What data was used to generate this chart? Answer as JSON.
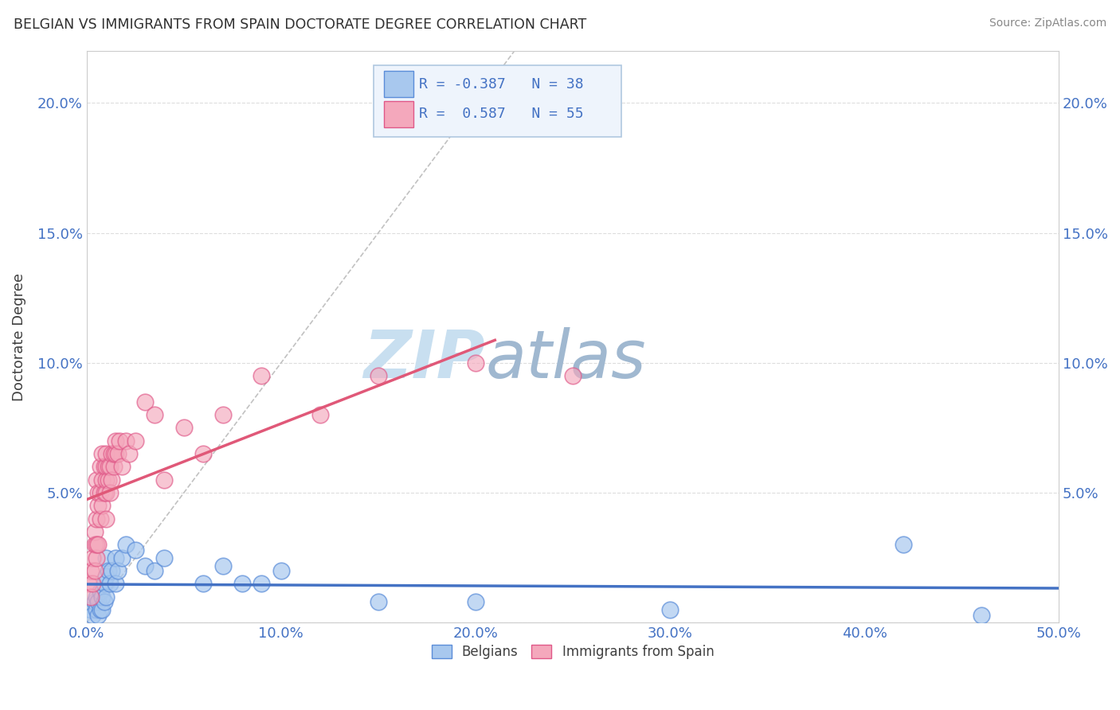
{
  "title": "BELGIAN VS IMMIGRANTS FROM SPAIN DOCTORATE DEGREE CORRELATION CHART",
  "source": "Source: ZipAtlas.com",
  "ylabel": "Doctorate Degree",
  "xlim": [
    0.0,
    0.5
  ],
  "ylim": [
    0.0,
    0.22
  ],
  "xticks": [
    0.0,
    0.1,
    0.2,
    0.3,
    0.4,
    0.5
  ],
  "xticklabels": [
    "0.0%",
    "10.0%",
    "20.0%",
    "30.0%",
    "40.0%",
    "50.0%"
  ],
  "yticks": [
    0.0,
    0.05,
    0.1,
    0.15,
    0.2
  ],
  "yticklabels": [
    "",
    "5.0%",
    "10.0%",
    "15.0%",
    "20.0%"
  ],
  "blue_R": -0.387,
  "blue_N": 38,
  "pink_R": 0.587,
  "pink_N": 55,
  "blue_color": "#A8C8EE",
  "pink_color": "#F4A8BC",
  "blue_edge_color": "#5B8DD9",
  "pink_edge_color": "#E05888",
  "blue_line_color": "#4472C4",
  "pink_line_color": "#E05878",
  "ref_line_color": "#BBBBBB",
  "background_color": "#FFFFFF",
  "grid_color": "#DDDDDD",
  "title_color": "#303030",
  "axis_label_color": "#404040",
  "tick_label_color": "#4472C4",
  "source_color": "#888888",
  "watermark_zip_color": "#C8DFF0",
  "watermark_atlas_color": "#A0B8D0",
  "legend_box_color": "#EEF4FC",
  "legend_border_color": "#B0C8E0",
  "blue_x": [
    0.002,
    0.003,
    0.004,
    0.005,
    0.005,
    0.006,
    0.006,
    0.007,
    0.007,
    0.008,
    0.008,
    0.009,
    0.009,
    0.01,
    0.01,
    0.01,
    0.011,
    0.012,
    0.013,
    0.015,
    0.015,
    0.016,
    0.018,
    0.02,
    0.025,
    0.03,
    0.035,
    0.04,
    0.06,
    0.07,
    0.08,
    0.09,
    0.1,
    0.15,
    0.2,
    0.3,
    0.42,
    0.46
  ],
  "blue_y": [
    0.005,
    0.003,
    0.008,
    0.005,
    0.01,
    0.003,
    0.008,
    0.005,
    0.012,
    0.005,
    0.01,
    0.008,
    0.015,
    0.01,
    0.018,
    0.025,
    0.02,
    0.015,
    0.02,
    0.015,
    0.025,
    0.02,
    0.025,
    0.03,
    0.028,
    0.022,
    0.02,
    0.025,
    0.015,
    0.022,
    0.015,
    0.015,
    0.02,
    0.008,
    0.008,
    0.005,
    0.03,
    0.003
  ],
  "pink_x": [
    0.001,
    0.002,
    0.002,
    0.003,
    0.003,
    0.004,
    0.004,
    0.004,
    0.005,
    0.005,
    0.005,
    0.005,
    0.006,
    0.006,
    0.006,
    0.007,
    0.007,
    0.007,
    0.008,
    0.008,
    0.008,
    0.009,
    0.009,
    0.01,
    0.01,
    0.01,
    0.01,
    0.01,
    0.011,
    0.011,
    0.012,
    0.012,
    0.013,
    0.013,
    0.014,
    0.014,
    0.015,
    0.015,
    0.016,
    0.017,
    0.018,
    0.02,
    0.022,
    0.025,
    0.03,
    0.035,
    0.04,
    0.05,
    0.06,
    0.07,
    0.09,
    0.12,
    0.15,
    0.2,
    0.25
  ],
  "pink_y": [
    0.015,
    0.01,
    0.02,
    0.015,
    0.025,
    0.02,
    0.03,
    0.035,
    0.025,
    0.03,
    0.04,
    0.055,
    0.03,
    0.045,
    0.05,
    0.04,
    0.05,
    0.06,
    0.045,
    0.055,
    0.065,
    0.05,
    0.06,
    0.04,
    0.05,
    0.055,
    0.06,
    0.065,
    0.055,
    0.06,
    0.05,
    0.06,
    0.055,
    0.065,
    0.06,
    0.065,
    0.065,
    0.07,
    0.065,
    0.07,
    0.06,
    0.07,
    0.065,
    0.07,
    0.085,
    0.08,
    0.055,
    0.075,
    0.065,
    0.08,
    0.095,
    0.08,
    0.095,
    0.1,
    0.095
  ]
}
